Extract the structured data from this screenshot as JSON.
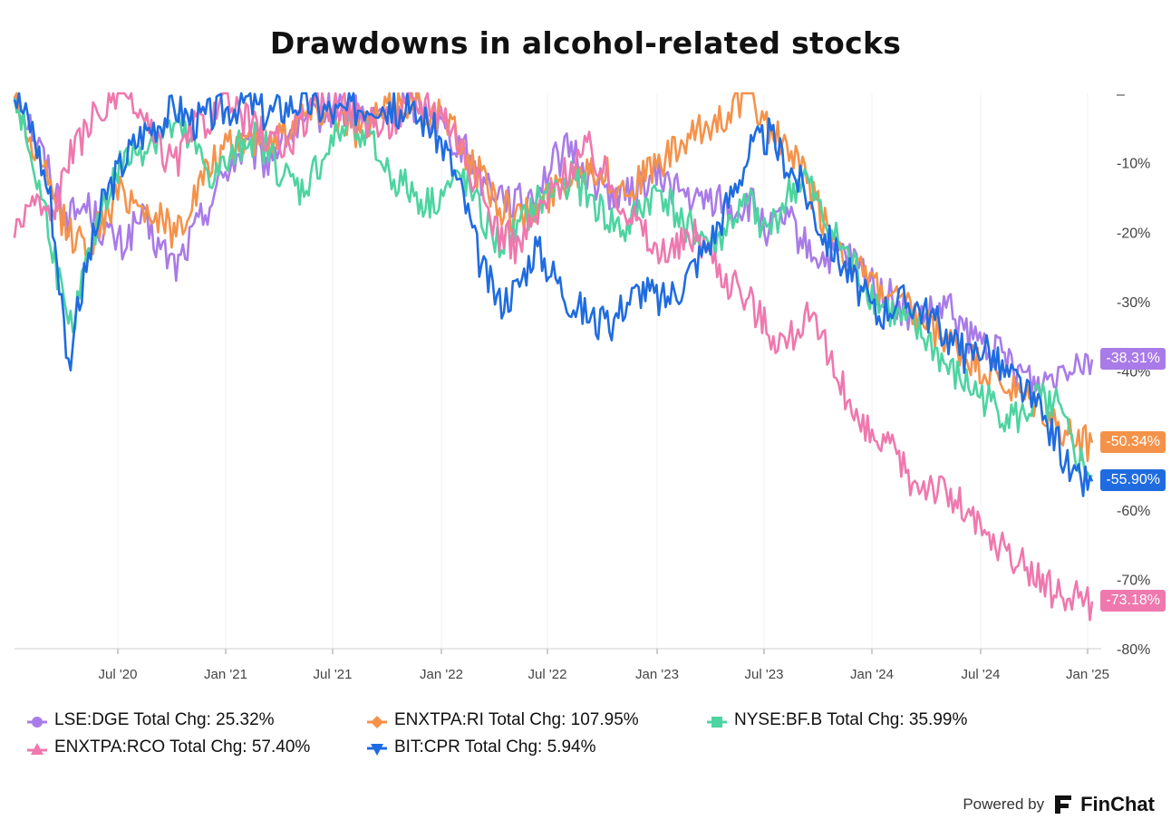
{
  "title": "Drawdowns in alcohol-related stocks",
  "chart_data": {
    "type": "line",
    "title": "Drawdowns in alcohol-related stocks",
    "xlabel": "",
    "ylabel": "",
    "x_ticks": [
      "Jul '20",
      "Jan '21",
      "Jul '21",
      "Jan '22",
      "Jul '22",
      "Jan '23",
      "Jul '23",
      "Jan '24",
      "Jul '24",
      "Jan '25"
    ],
    "y_ticks": [
      "–",
      "-10%",
      "-20%",
      "-30%",
      "-40%",
      "-50%",
      "-60%",
      "-70%",
      "-80%"
    ],
    "ylim": [
      -80,
      0
    ],
    "x_range": [
      "Jan '20",
      "Jan '25"
    ],
    "series": [
      {
        "name": "LSE:DGE",
        "color": "#A97BE8",
        "marker": "circle",
        "legend": "LSE:DGE Total Chg: 25.32%",
        "end_label": "-38.31%",
        "x": [
          0,
          1,
          2,
          3,
          4,
          5,
          6,
          7,
          8,
          9,
          10,
          11,
          12,
          13,
          14,
          15,
          16,
          17,
          18,
          19,
          20,
          21,
          22,
          23,
          24,
          25,
          26,
          27,
          28,
          29,
          30,
          31,
          32,
          33,
          34,
          35,
          36,
          37,
          38,
          39,
          40,
          41,
          42,
          43,
          44,
          45,
          46,
          47,
          48,
          49,
          50,
          51,
          52,
          53,
          54,
          55,
          56,
          57,
          58,
          59,
          60
        ],
        "values": [
          0,
          -5,
          -12,
          -18,
          -16,
          -20,
          -22,
          -18,
          -22,
          -25,
          -20,
          -15,
          -10,
          -8,
          -10,
          -6,
          -5,
          -3,
          -2,
          -3,
          -4,
          -2,
          -1,
          -3,
          -5,
          -8,
          -12,
          -14,
          -16,
          -14,
          -10,
          -8,
          -12,
          -14,
          -15,
          -13,
          -12,
          -14,
          -16,
          -15,
          -17,
          -16,
          -20,
          -18,
          -22,
          -24,
          -23,
          -25,
          -28,
          -30,
          -33,
          -32,
          -31,
          -35,
          -36,
          -38,
          -40,
          -42,
          -40,
          -38,
          -38.31
        ]
      },
      {
        "name": "ENXTPA:RI",
        "color": "#F5924A",
        "marker": "diamond",
        "legend": "ENXTPA:RI Total Chg: 107.95%",
        "end_label": "-50.34%",
        "x": [
          0,
          1,
          2,
          3,
          4,
          5,
          6,
          7,
          8,
          9,
          10,
          11,
          12,
          13,
          14,
          15,
          16,
          17,
          18,
          19,
          20,
          21,
          22,
          23,
          24,
          25,
          26,
          27,
          28,
          29,
          30,
          31,
          32,
          33,
          34,
          35,
          36,
          37,
          38,
          39,
          40,
          41,
          42,
          43,
          44,
          45,
          46,
          47,
          48,
          49,
          50,
          51,
          52,
          53,
          54,
          55,
          56,
          57,
          58,
          59,
          60
        ],
        "values": [
          0,
          -8,
          -14,
          -20,
          -22,
          -18,
          -14,
          -16,
          -18,
          -20,
          -15,
          -10,
          -8,
          -6,
          -7,
          -5,
          -3,
          -2,
          -3,
          -5,
          -4,
          -2,
          -1,
          -2,
          -4,
          -8,
          -12,
          -16,
          -18,
          -17,
          -14,
          -12,
          -10,
          -12,
          -14,
          -12,
          -10,
          -8,
          -6,
          -4,
          -2,
          0,
          -5,
          -8,
          -12,
          -18,
          -22,
          -26,
          -28,
          -30,
          -32,
          -34,
          -36,
          -38,
          -40,
          -42,
          -44,
          -45,
          -48,
          -50,
          -50.34
        ]
      },
      {
        "name": "NYSE:BF.B",
        "color": "#4DD4A0",
        "marker": "square",
        "legend": "NYSE:BF.B Total Chg: 35.99%",
        "end_label": "",
        "x": [
          0,
          1,
          2,
          3,
          4,
          5,
          6,
          7,
          8,
          9,
          10,
          11,
          12,
          13,
          14,
          15,
          16,
          17,
          18,
          19,
          20,
          21,
          22,
          23,
          24,
          25,
          26,
          27,
          28,
          29,
          30,
          31,
          32,
          33,
          34,
          35,
          36,
          37,
          38,
          39,
          40,
          41,
          42,
          43,
          44,
          45,
          46,
          47,
          48,
          49,
          50,
          51,
          52,
          53,
          54,
          55,
          56,
          57,
          58,
          59,
          60
        ],
        "values": [
          0,
          -10,
          -20,
          -35,
          -25,
          -15,
          -10,
          -8,
          -6,
          -5,
          -8,
          -12,
          -10,
          -6,
          -8,
          -12,
          -14,
          -10,
          -6,
          -4,
          -8,
          -12,
          -14,
          -16,
          -14,
          -12,
          -18,
          -22,
          -20,
          -16,
          -14,
          -12,
          -15,
          -18,
          -20,
          -16,
          -14,
          -18,
          -20,
          -22,
          -18,
          -16,
          -20,
          -15,
          -12,
          -18,
          -22,
          -26,
          -30,
          -32,
          -34,
          -36,
          -40,
          -42,
          -44,
          -46,
          -47,
          -44,
          -45,
          -52,
          -55
        ]
      },
      {
        "name": "ENXTPA:RCO",
        "color": "#EF78AE",
        "marker": "triangle-up",
        "legend": "ENXTPA:RCO Total Chg: 57.40%",
        "end_label": "-73.18%",
        "x": [
          0,
          1,
          2,
          3,
          4,
          5,
          6,
          7,
          8,
          9,
          10,
          11,
          12,
          13,
          14,
          15,
          16,
          17,
          18,
          19,
          20,
          21,
          22,
          23,
          24,
          25,
          26,
          27,
          28,
          29,
          30,
          31,
          32,
          33,
          34,
          35,
          36,
          37,
          38,
          39,
          40,
          41,
          42,
          43,
          44,
          45,
          46,
          47,
          48,
          49,
          50,
          51,
          52,
          53,
          54,
          55,
          56,
          57,
          58,
          59,
          60
        ],
        "values": [
          -20,
          -15,
          -18,
          -10,
          -5,
          -2,
          0,
          -3,
          -8,
          -10,
          -5,
          -3,
          -2,
          -4,
          -6,
          -8,
          -4,
          -2,
          -1,
          -3,
          -5,
          -4,
          -2,
          -1,
          -3,
          -8,
          -15,
          -20,
          -22,
          -18,
          -14,
          -10,
          -8,
          -12,
          -16,
          -20,
          -24,
          -22,
          -20,
          -24,
          -28,
          -30,
          -34,
          -36,
          -32,
          -36,
          -42,
          -48,
          -50,
          -52,
          -56,
          -56,
          -58,
          -60,
          -64,
          -66,
          -68,
          -70,
          -72,
          -73,
          -73.18
        ]
      },
      {
        "name": "BIT:CPR",
        "color": "#1F6CE0",
        "marker": "triangle-down",
        "legend": "BIT:CPR Total Chg: 5.94%",
        "end_label": "-55.90%",
        "x": [
          0,
          1,
          2,
          3,
          4,
          5,
          6,
          7,
          8,
          9,
          10,
          11,
          12,
          13,
          14,
          15,
          16,
          17,
          18,
          19,
          20,
          21,
          22,
          23,
          24,
          25,
          26,
          27,
          28,
          29,
          30,
          31,
          32,
          33,
          34,
          35,
          36,
          37,
          38,
          39,
          40,
          41,
          42,
          43,
          44,
          45,
          46,
          47,
          48,
          49,
          50,
          51,
          52,
          53,
          54,
          55,
          56,
          57,
          58,
          59,
          60
        ],
        "values": [
          0,
          -5,
          -15,
          -39,
          -25,
          -15,
          -10,
          -6,
          -4,
          -2,
          -4,
          -3,
          -2,
          -1,
          -3,
          -2,
          -1,
          -2,
          -3,
          -2,
          -1,
          -2,
          -3,
          -4,
          -8,
          -15,
          -25,
          -30,
          -28,
          -22,
          -26,
          -30,
          -32,
          -34,
          -30,
          -28,
          -30,
          -28,
          -24,
          -20,
          -14,
          -8,
          -6,
          -10,
          -14,
          -20,
          -24,
          -28,
          -32,
          -30,
          -30,
          -32,
          -35,
          -38,
          -36,
          -40,
          -42,
          -46,
          -50,
          -56,
          -55.9
        ]
      }
    ]
  },
  "footer": {
    "powered_by": "Powered by",
    "brand": "FinChat"
  }
}
